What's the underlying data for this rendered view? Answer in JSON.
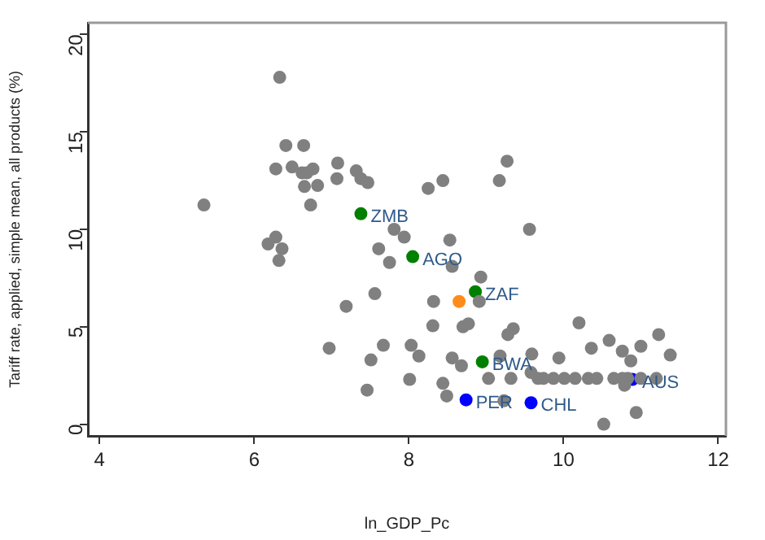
{
  "chart_data": {
    "type": "scatter",
    "xlabel": "ln_GDP_Pc",
    "ylabel": "Tariff rate, applied, simple mean, all products (%)",
    "xlim": [
      3.85,
      12.1
    ],
    "xticks": [
      4,
      6,
      8,
      10,
      12
    ],
    "ylim": [
      -0.6,
      20.6
    ],
    "yticks": [
      0,
      5,
      10,
      15,
      20
    ],
    "grid": false,
    "legend": false,
    "marker": "circle",
    "series": [
      {
        "color": "#808080",
        "x": [
          6.33,
          6.41,
          6.64,
          6.28,
          6.49,
          6.76,
          6.62,
          6.68,
          7.08,
          7.07,
          7.32,
          7.38,
          7.47,
          6.65,
          6.82,
          8.25,
          8.44,
          9.17,
          9.27,
          5.35,
          6.73,
          7.81,
          7.94,
          6.18,
          6.28,
          6.36,
          6.32,
          7.61,
          7.75,
          7.56,
          7.19,
          6.97,
          7.67,
          8.03,
          8.13,
          7.51,
          8.01,
          7.46,
          9.56,
          8.53,
          8.56,
          8.93,
          8.91,
          8.32,
          8.31,
          8.7,
          8.77,
          9.28,
          9.35,
          10.2,
          10.59,
          10.36,
          11.0,
          11.23,
          11.38,
          10.76,
          10.87,
          9.59,
          9.94,
          8.56,
          8.68,
          9.18,
          9.03,
          9.32,
          9.58,
          9.67,
          9.74,
          9.87,
          10.01,
          10.15,
          10.32,
          10.43,
          10.65,
          10.76,
          10.83,
          11.0,
          11.2,
          10.79,
          8.44,
          8.49,
          9.23,
          10.52,
          10.94
        ],
        "values": [
          17.8,
          14.3,
          14.3,
          13.1,
          13.2,
          13.1,
          12.9,
          12.9,
          13.4,
          12.6,
          13.0,
          12.6,
          12.4,
          12.2,
          12.25,
          12.1,
          12.5,
          12.5,
          13.5,
          11.25,
          11.25,
          10.0,
          9.6,
          9.25,
          9.6,
          9.0,
          8.4,
          9.0,
          8.3,
          6.7,
          6.05,
          3.9,
          4.05,
          4.05,
          3.5,
          3.3,
          2.3,
          1.75,
          10.0,
          9.45,
          8.1,
          7.55,
          6.3,
          6.3,
          5.05,
          5.0,
          5.15,
          4.6,
          4.9,
          5.2,
          4.3,
          3.9,
          4.0,
          4.6,
          3.55,
          3.75,
          3.25,
          3.6,
          3.4,
          3.4,
          3.0,
          3.5,
          2.35,
          2.35,
          2.65,
          2.35,
          2.35,
          2.35,
          2.35,
          2.35,
          2.35,
          2.35,
          2.35,
          2.35,
          2.35,
          2.35,
          2.35,
          2.0,
          2.1,
          1.45,
          1.2,
          0.0,
          0.6
        ]
      },
      {
        "color": "#008000",
        "x": [
          7.38,
          8.05,
          8.86,
          8.95
        ],
        "values": [
          10.8,
          8.6,
          6.8,
          3.2
        ],
        "value_labels": [
          "ZMB",
          "AGO",
          "ZAF",
          "BWA"
        ]
      },
      {
        "color": "#ff8c1a",
        "x": [
          8.65
        ],
        "values": [
          6.3
        ]
      },
      {
        "color": "#0000ff",
        "x": [
          8.74,
          9.58,
          10.89
        ],
        "values": [
          1.25,
          1.1,
          2.3
        ],
        "value_labels": [
          "PER",
          "CHL",
          "AUS"
        ]
      }
    ]
  }
}
